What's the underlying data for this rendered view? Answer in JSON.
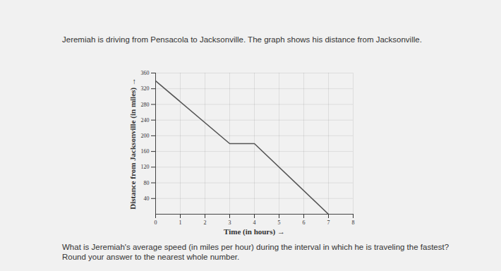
{
  "chart_data": {
    "type": "line",
    "title": "Jeremiah is driving from Pensacola to Jacksonville. The graph shows his distance from Jacksonville.",
    "caption": "What is Jeremiah's average speed (in miles per hour) during the interval in which he is traveling the fastest? Round your answer to the nearest whole number.",
    "x_label": "Time (in hours)",
    "y_label": "Distance from Jacksonville (in miles)",
    "x": [
      0,
      3,
      4,
      7
    ],
    "values": [
      340,
      180,
      180,
      0
    ],
    "color": "#555555",
    "xlim": [
      0,
      8
    ],
    "ylim": [
      0,
      360
    ],
    "xticks": [
      0,
      1,
      2,
      3,
      4,
      5,
      6,
      7,
      8
    ],
    "yticks": [
      40,
      80,
      120,
      160,
      200,
      240,
      280,
      320,
      360
    ],
    "grid": true
  }
}
